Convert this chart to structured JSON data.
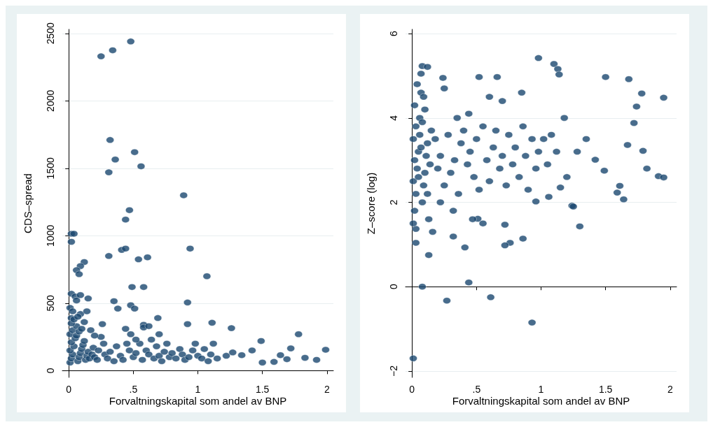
{
  "chart_data": [
    {
      "type": "scatter",
      "xlabel": "Forvaltningskapital som andel av BNP",
      "ylabel": "CDS–spread",
      "xlim": [
        -0.05,
        2.05
      ],
      "ylim": [
        -50,
        2530
      ],
      "xticks": [
        0,
        {
          "value": 0.5,
          "label": ".5"
        },
        1,
        1.5,
        2
      ],
      "yticks": [
        0,
        500,
        1000,
        1500,
        2000,
        2500
      ],
      "grid": "y",
      "marker": "circle",
      "series": [
        {
          "color": "#1a476f",
          "x": [
            0.25,
            0.34,
            0.48,
            0.32,
            0.36,
            0.51,
            0.31,
            0.56,
            0.89,
            0.47,
            0.44,
            0.02,
            0.04,
            0.02,
            0.94,
            0.41,
            0.44,
            0.61,
            0.54,
            0.31,
            0.12,
            0.09,
            0.06,
            0.08,
            1.07,
            0.49,
            0.58,
            0.02,
            0.05,
            0.15,
            0.35,
            0.92,
            0.01,
            0.48,
            0.51,
            0.38,
            0.09,
            0.02,
            0.69,
            0.58,
            0.92,
            1.11,
            1.26,
            0.26,
            1.49,
            1.72,
            1.78,
            1.99,
            1.92,
            1.83,
            1.64,
            1.5,
            1.42,
            1.34,
            1.22,
            1.27,
            1.59,
            1.69,
            0.01,
            0.02,
            0.03,
            0.01,
            0.04,
            0.02,
            0.05,
            0.01,
            0.03,
            0.06,
            0.02,
            0.07,
            0.08,
            0.09,
            0.1,
            0.11,
            0.12,
            0.06,
            0.08,
            0.1,
            0.13,
            0.14,
            0.15,
            0.04,
            0.07,
            0.12,
            0.16,
            0.18,
            0.2,
            0.22,
            0.19,
            0.23,
            0.25,
            0.27,
            0.28,
            0.3,
            0.32,
            0.35,
            0.37,
            0.4,
            0.42,
            0.45,
            0.47,
            0.5,
            0.52,
            0.55,
            0.57,
            0.6,
            0.62,
            0.64,
            0.66,
            0.68,
            0.7,
            0.72,
            0.74,
            0.76,
            0.78,
            0.8,
            0.83,
            0.86,
            0.88,
            0.9,
            0.93,
            0.96,
            0.98,
            1.0,
            1.03,
            1.05,
            1.08,
            1.1,
            1.12,
            1.15,
            0.48,
            0.52,
            0.58,
            0.62,
            0.44,
            0.7,
            0.17,
            0.2,
            0.14,
            0.03,
            0.06,
            0.09
          ],
          "values": [
            2330,
            2375,
            2440,
            1710,
            1565,
            1620,
            1470,
            1515,
            1300,
            1190,
            1120,
            1015,
            1015,
            955,
            905,
            895,
            905,
            840,
            825,
            850,
            805,
            775,
            745,
            715,
            700,
            620,
            620,
            570,
            550,
            535,
            515,
            505,
            465,
            485,
            460,
            460,
            420,
            390,
            390,
            340,
            345,
            355,
            315,
            345,
            220,
            165,
            270,
            155,
            80,
            95,
            115,
            60,
            150,
            115,
            110,
            135,
            65,
            85,
            60,
            90,
            120,
            150,
            180,
            210,
            240,
            270,
            300,
            330,
            350,
            70,
            100,
            130,
            160,
            190,
            220,
            260,
            290,
            310,
            80,
            110,
            140,
            380,
            400,
            360,
            90,
            120,
            100,
            80,
            170,
            150,
            250,
            200,
            120,
            90,
            140,
            70,
            180,
            110,
            80,
            200,
            150,
            100,
            130,
            200,
            80,
            150,
            120,
            230,
            90,
            180,
            110,
            70,
            140,
            200,
            100,
            130,
            90,
            160,
            120,
            80,
            100,
            150,
            200,
            110,
            90,
            160,
            70,
            120,
            200,
            90,
            270,
            230,
            320,
            330,
            310,
            270,
            300,
            260,
            440,
            440,
            520,
            560
          ]
        }
      ]
    },
    {
      "type": "scatter",
      "xlabel": "Forvaltningskapital som andel av BNP",
      "ylabel": "Z–score (log)",
      "xlim": [
        -0.05,
        2.05
      ],
      "ylim": [
        -2.15,
        6.1
      ],
      "xticks": [
        0,
        {
          "value": 0.5,
          "label": ".5"
        },
        1,
        1.5,
        2
      ],
      "yticks": [
        {
          "value": -2,
          "label": "−2"
        },
        0,
        2,
        4,
        6
      ],
      "grid": "y",
      "marker": "circle",
      "series": [
        {
          "color": "#1a476f",
          "x": [
            0.01,
            0.08,
            0.27,
            0.44,
            0.61,
            0.93,
            0.03,
            0.03,
            0.08,
            0.12,
            0.07,
            0.98,
            1.1,
            1.13,
            1.14,
            1.5,
            1.68,
            0.52,
            0.66,
            0.24,
            1.78,
            1.95,
            1.74,
            1.72,
            1.79,
            1.67,
            1.42,
            1.49,
            1.82,
            1.91,
            1.95,
            1.61,
            1.59,
            1.64,
            1.3,
            1.24,
            1.15,
            1.06,
            0.96,
            0.86,
            0.76,
            0.72,
            0.72,
            0.51,
            0.32,
            0.41,
            0.13,
            0.01,
            0.02,
            0.03,
            0.01,
            0.04,
            0.02,
            0.05,
            0.01,
            0.03,
            0.06,
            0.02,
            0.07,
            0.08,
            0.09,
            0.1,
            0.11,
            0.12,
            0.06,
            0.08,
            0.1,
            0.13,
            0.14,
            0.15,
            0.04,
            0.09,
            0.05,
            0.07,
            0.12,
            0.16,
            0.18,
            0.2,
            0.22,
            0.25,
            0.28,
            0.3,
            0.33,
            0.36,
            0.38,
            0.4,
            0.43,
            0.45,
            0.48,
            0.5,
            0.52,
            0.55,
            0.58,
            0.6,
            0.63,
            0.65,
            0.68,
            0.7,
            0.73,
            0.75,
            0.78,
            0.8,
            0.83,
            0.86,
            0.88,
            0.9,
            0.93,
            0.96,
            0.98,
            1.02,
            1.05,
            1.08,
            1.12,
            1.18,
            1.2,
            1.28,
            1.35,
            1.25,
            0.6,
            0.7,
            0.85,
            0.35,
            0.25,
            0.44,
            0.55,
            0.47,
            0.32,
            0.22
          ],
          "values": [
            -1.7,
            0.0,
            -0.33,
            0.1,
            -0.25,
            -0.85,
            1.04,
            1.37,
            5.23,
            5.21,
            5.05,
            5.42,
            5.28,
            5.16,
            5.03,
            4.97,
            4.92,
            4.97,
            4.97,
            4.95,
            4.58,
            4.48,
            4.27,
            3.88,
            3.22,
            3.36,
            3.01,
            2.75,
            2.8,
            2.62,
            2.59,
            2.39,
            2.23,
            2.07,
            1.43,
            1.92,
            2.35,
            2.13,
            2.02,
            1.14,
            1.04,
            0.98,
            1.47,
            1.61,
            1.19,
            0.93,
            0.75,
            1.5,
            1.8,
            2.2,
            2.5,
            2.8,
            3.0,
            3.2,
            3.5,
            3.8,
            4.0,
            4.3,
            4.6,
            2.0,
            2.4,
            2.7,
            3.1,
            3.4,
            3.6,
            3.9,
            4.2,
            1.6,
            2.9,
            3.7,
            4.8,
            4.5,
            2.6,
            3.3,
            2.2,
            1.3,
            3.5,
            2.8,
            3.1,
            2.4,
            3.6,
            2.7,
            3.0,
            2.2,
            3.4,
            3.7,
            2.9,
            3.2,
            2.6,
            3.5,
            2.3,
            3.8,
            3.0,
            2.5,
            3.3,
            3.7,
            2.8,
            3.1,
            2.4,
            3.6,
            2.9,
            3.3,
            2.6,
            3.8,
            3.1,
            2.3,
            3.5,
            2.8,
            3.2,
            3.5,
            2.9,
            3.6,
            3.2,
            4.0,
            2.6,
            3.2,
            3.5,
            1.9,
            4.5,
            4.4,
            4.6,
            4.0,
            4.7,
            4.1,
            1.5,
            1.6,
            1.8,
            2.0
          ]
        }
      ]
    }
  ]
}
